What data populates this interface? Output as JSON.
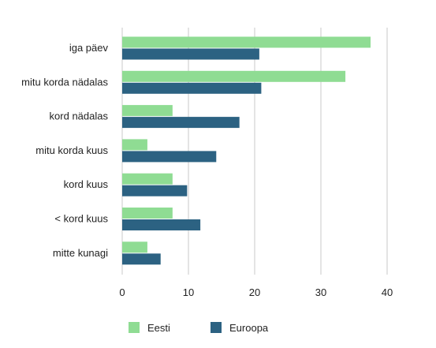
{
  "chart_data": {
    "type": "bar",
    "orientation": "horizontal",
    "categories": [
      "iga päev",
      "mitu korda nädalas",
      "kord nädalas",
      "mitu korda kuus",
      "kord kuus",
      "< kord kuus",
      "mitte kunagi"
    ],
    "series": [
      {
        "name": "Eesti",
        "color": "#8fdc93",
        "values": [
          37.5,
          33.7,
          7.6,
          3.8,
          7.6,
          7.6,
          3.8
        ]
      },
      {
        "name": "Europa",
        "color": "#2c6282",
        "values": [
          20.7,
          21.0,
          17.7,
          14.2,
          9.8,
          11.8,
          5.8
        ]
      }
    ],
    "xlim": [
      0,
      40
    ],
    "xticks": [
      "0",
      "10",
      "20",
      "30",
      "40"
    ],
    "grid": true,
    "legend": "bottom",
    "legend_labels": [
      "Eesti",
      "Euroopa"
    ]
  }
}
